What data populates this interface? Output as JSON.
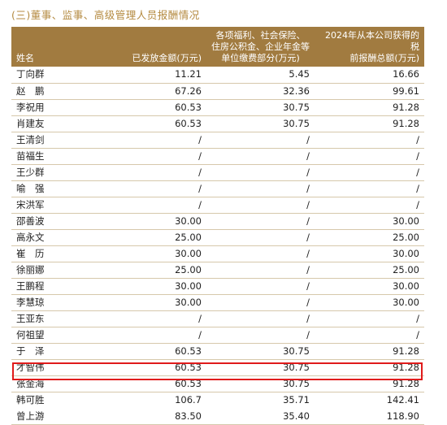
{
  "title": "(三)董事、监事、高级管理人员报酬情况",
  "table": {
    "headers": [
      "姓名",
      "已发放金额(万元)",
      "各项福利、社会保险、住房公积金、企业年金等单位缴费部分(万元)",
      "2024年从本公司获得的税前报酬总额(万元)"
    ],
    "rows": [
      [
        "丁向群",
        "11.21",
        "5.45",
        "16.66"
      ],
      [
        "赵　鹏",
        "67.26",
        "32.36",
        "99.61"
      ],
      [
        "李祝用",
        "60.53",
        "30.75",
        "91.28"
      ],
      [
        "肖建友",
        "60.53",
        "30.75",
        "91.28"
      ],
      [
        "王清剑",
        "/",
        "/",
        "/"
      ],
      [
        "苗福生",
        "/",
        "/",
        "/"
      ],
      [
        "王少群",
        "/",
        "/",
        "/"
      ],
      [
        "喻　强",
        "/",
        "/",
        "/"
      ],
      [
        "宋洪军",
        "/",
        "/",
        "/"
      ],
      [
        "邵善波",
        "30.00",
        "/",
        "30.00"
      ],
      [
        "高永文",
        "25.00",
        "/",
        "25.00"
      ],
      [
        "崔　历",
        "30.00",
        "/",
        "30.00"
      ],
      [
        "徐丽娜",
        "25.00",
        "/",
        "25.00"
      ],
      [
        "王鹏程",
        "30.00",
        "/",
        "30.00"
      ],
      [
        "李慧琼",
        "30.00",
        "/",
        "30.00"
      ],
      [
        "王亚东",
        "/",
        "/",
        "/"
      ],
      [
        "何祖望",
        "/",
        "/",
        "/"
      ],
      [
        "于　泽",
        "60.53",
        "30.75",
        "91.28"
      ],
      [
        "才智伟",
        "60.53",
        "30.75",
        "91.28"
      ],
      [
        "张金海",
        "60.53",
        "30.75",
        "91.28"
      ],
      [
        "韩可胜",
        "106.7",
        "35.71",
        "142.41"
      ],
      [
        "曾上游",
        "83.50",
        "35.40",
        "118.90"
      ]
    ]
  },
  "colors": {
    "header_bg": "#a17b40",
    "title": "#b48a40",
    "highlight_border": "#e01b1b",
    "row_rule": "#d6c8ab"
  }
}
